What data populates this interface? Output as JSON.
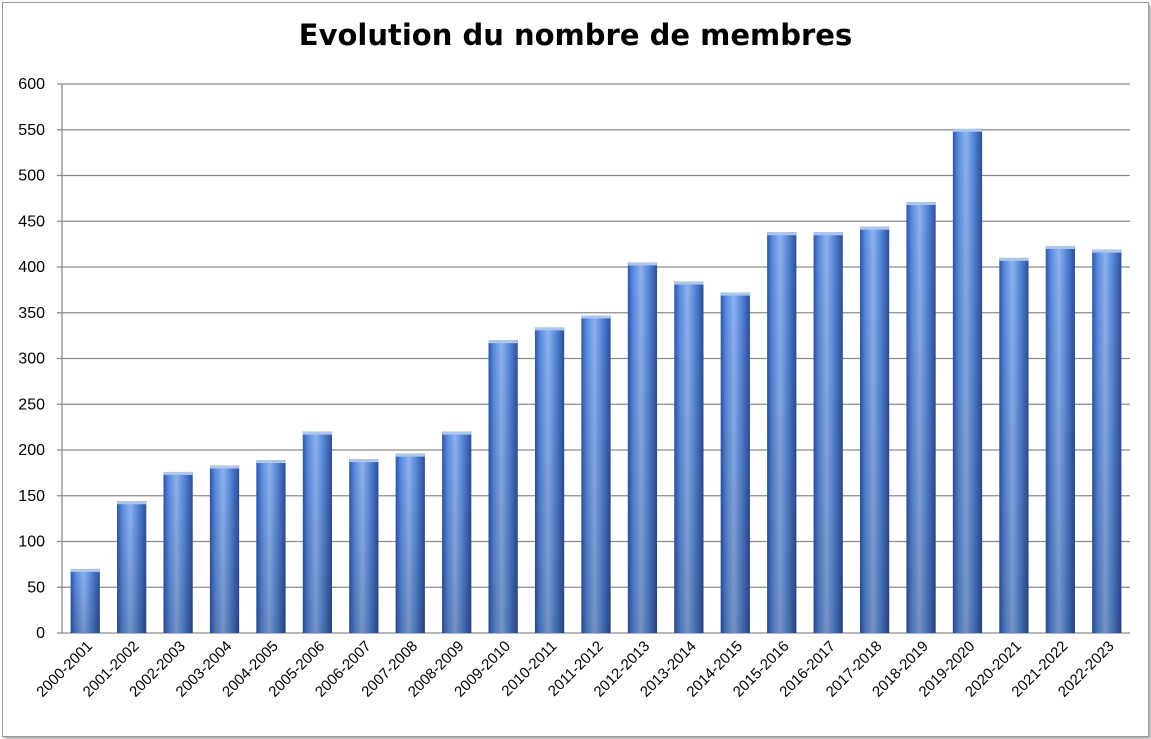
{
  "chart_data": {
    "type": "bar",
    "title": "Evolution du nombre de membres",
    "categories": [
      "2000-2001",
      "2001-2002",
      "2002-2003",
      "2003-2004",
      "2004-2005",
      "2005-2006",
      "2006-2007",
      "2007-2008",
      "2008-2009",
      "2009-2010",
      "2010-2011",
      "2011-2012",
      "2012-2013",
      "2013-2014",
      "2014-2015",
      "2015-2016",
      "2016-2017",
      "2017-2018",
      "2018-2019",
      "2019-2020",
      "2020-2021",
      "2021-2022",
      "2022-2023"
    ],
    "values": [
      70,
      144,
      176,
      183,
      189,
      220,
      190,
      196,
      220,
      320,
      334,
      347,
      405,
      384,
      372,
      438,
      438,
      444,
      471,
      551,
      410,
      423,
      419
    ],
    "ylim": [
      0,
      600
    ],
    "yticks": [
      0,
      50,
      100,
      150,
      200,
      250,
      300,
      350,
      400,
      450,
      500,
      550,
      600
    ],
    "xlabel": "",
    "ylabel": "",
    "grid": true,
    "legend": "none",
    "colors": {
      "bar_light": "#8db3ef",
      "bar_mid": "#4f81d8",
      "bar_dark": "#2d4f98",
      "grid": "#8c8c8c"
    }
  }
}
